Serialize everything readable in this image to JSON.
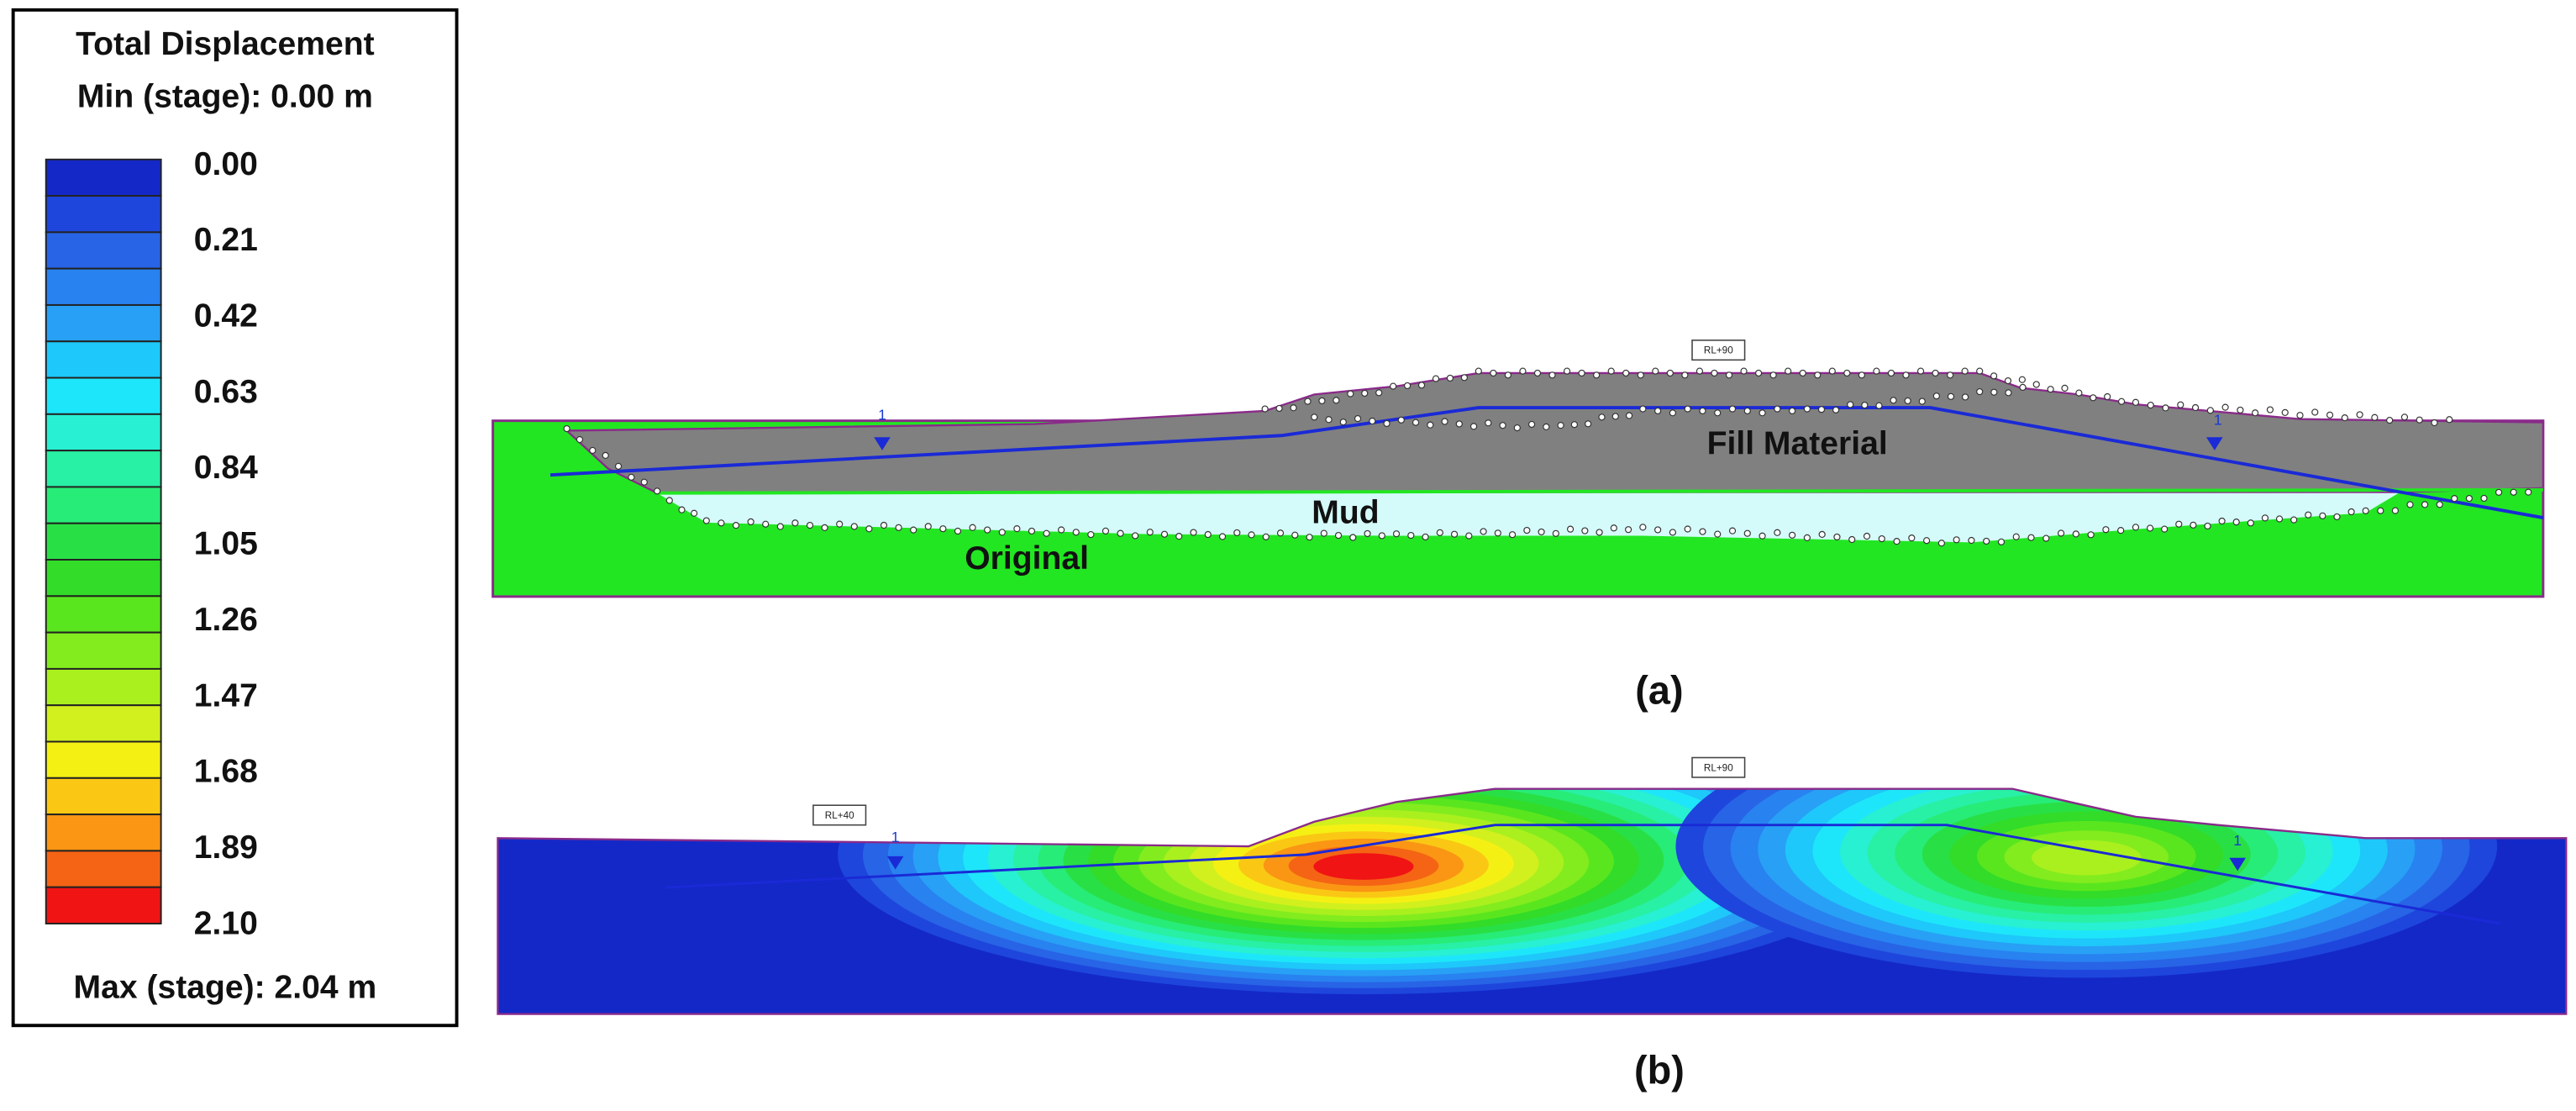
{
  "legend": {
    "title": "Total Displacement",
    "min_label": "Min (stage): 0.00 m",
    "labels": [
      "0.00",
      "0.21",
      "0.42",
      "0.63",
      "0.84",
      "1.05",
      "1.26",
      "1.47",
      "1.68",
      "1.89",
      "2.10"
    ],
    "max_label": "Max (stage): 2.04 m"
  },
  "panel_a": {
    "rl_label": "RL+90",
    "water_labels": [
      "1",
      "1"
    ],
    "layers": [
      "Fill Material",
      "Mud",
      "Original"
    ],
    "caption": "(a)"
  },
  "panel_b": {
    "rl_labels": [
      "RL+40",
      "RL+90"
    ],
    "water_labels": [
      "1",
      "1"
    ],
    "caption": "(b)"
  }
}
